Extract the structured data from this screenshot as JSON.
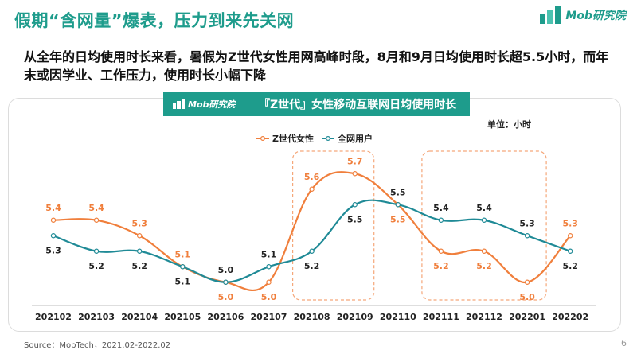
{
  "header": {
    "title": "假期“含网量”爆表，压力到来先关网",
    "logo_text": "Mob研究院",
    "subtitle": "从全年的日均使用时长来看，暑假为Z世代女性用网高峰时段，8月和9月日均使用时长超5.5小时，而年末或因学业、工作压力，使用时长小幅下降"
  },
  "banner": {
    "logo_text": "Mob研究院",
    "title": "『Z世代』女性移动互联网日均使用时长"
  },
  "footer": {
    "source": "Source：MobTech，2021.02-2022.02",
    "page_number": "6"
  },
  "colors": {
    "accent": "#1e9c8c",
    "z_gen_female": "#f07f3c",
    "all_users": "#1f8a96",
    "highlight_box": "#f5a77a"
  },
  "chart_data": {
    "type": "line",
    "unit_label": "单位：小时",
    "categories": [
      "202102",
      "202103",
      "202104",
      "202105",
      "202106",
      "202107",
      "202108",
      "202109",
      "202110",
      "202111",
      "202112",
      "202201",
      "202202"
    ],
    "series": [
      {
        "name": "Z世代女性",
        "values": [
          5.4,
          5.4,
          5.3,
          5.1,
          5.0,
          5.0,
          5.6,
          5.7,
          5.5,
          5.2,
          5.2,
          5.0,
          5.3
        ],
        "color": "#f07f3c"
      },
      {
        "name": "全网用户",
        "values": [
          5.3,
          5.2,
          5.2,
          5.1,
          5.0,
          5.1,
          5.2,
          5.5,
          5.5,
          5.4,
          5.4,
          5.3,
          5.2
        ],
        "color": "#1f8a96"
      }
    ],
    "highlight_ranges": [
      [
        "202108",
        "202109"
      ],
      [
        "202111",
        "202201"
      ]
    ],
    "legend_position": "top-center",
    "grid": false
  }
}
